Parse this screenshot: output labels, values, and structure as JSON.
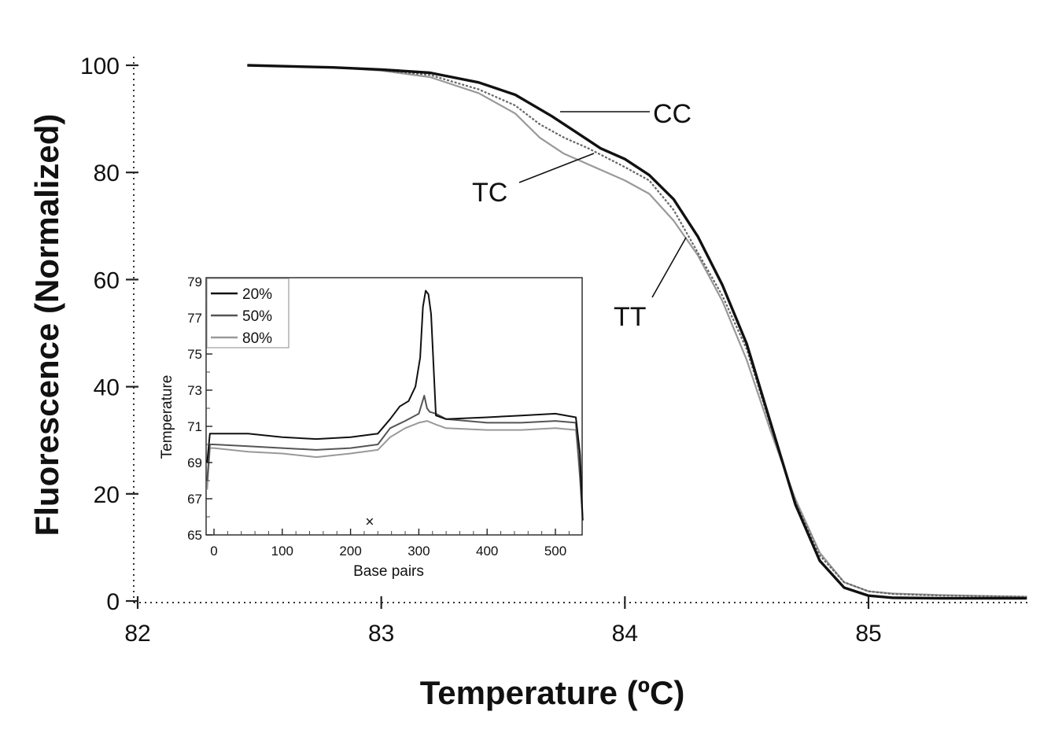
{
  "chart_data": [
    {
      "type": "line",
      "title": "",
      "xlabel": "Temperature (ºC)",
      "ylabel": "Fluorescence (Normalized)",
      "xlim": [
        82,
        85.65
      ],
      "ylim": [
        0,
        100
      ],
      "xticks": [
        "82",
        "83",
        "84",
        "85"
      ],
      "yticks": [
        "0",
        "20",
        "40",
        "60",
        "80",
        "100"
      ],
      "grid": false,
      "series": [
        {
          "name": "CC",
          "color": "#111111",
          "x": [
            82.45,
            82.8,
            83.0,
            83.2,
            83.4,
            83.55,
            83.7,
            83.8,
            83.9,
            84.0,
            84.1,
            84.2,
            84.3,
            84.4,
            84.5,
            84.6,
            84.7,
            84.8,
            84.9,
            85.0,
            85.1,
            85.3,
            85.65
          ],
          "y": [
            100,
            99.6,
            99.2,
            98.6,
            96.8,
            94.5,
            90.5,
            87.5,
            84.5,
            82.5,
            79.5,
            75.0,
            68.0,
            59.0,
            48.0,
            33.0,
            18.0,
            7.5,
            2.5,
            1.0,
            0.6,
            0.5,
            0.5
          ]
        },
        {
          "name": "TC",
          "color": "#666666",
          "x": [
            82.45,
            82.8,
            83.0,
            83.2,
            83.4,
            83.55,
            83.65,
            83.75,
            83.85,
            84.0,
            84.1,
            84.2,
            84.3,
            84.4,
            84.5,
            84.6,
            84.7,
            84.8,
            84.9,
            85.0,
            85.1,
            85.3,
            85.65
          ],
          "y": [
            100,
            99.6,
            99.1,
            98.2,
            95.5,
            92.5,
            89.0,
            86.5,
            84.5,
            81.0,
            78.5,
            73.0,
            65.0,
            57.0,
            47.0,
            32.5,
            18.5,
            8.5,
            3.5,
            1.8,
            1.3,
            1.0,
            0.8
          ]
        },
        {
          "name": "TT",
          "color": "#999999",
          "x": [
            82.45,
            82.8,
            83.0,
            83.2,
            83.4,
            83.55,
            83.65,
            83.75,
            83.85,
            84.0,
            84.1,
            84.2,
            84.3,
            84.4,
            84.5,
            84.6,
            84.7,
            84.8,
            84.9,
            85.0,
            85.1,
            85.3,
            85.65
          ],
          "y": [
            100,
            99.6,
            99.0,
            97.8,
            94.8,
            91.0,
            86.5,
            83.5,
            81.5,
            78.5,
            76.0,
            71.0,
            64.5,
            56.0,
            45.0,
            31.5,
            19.0,
            9.0,
            3.5,
            1.8,
            1.4,
            1.1,
            0.8
          ]
        }
      ],
      "annotations": [
        "CC",
        "TC",
        "TT"
      ]
    },
    {
      "type": "line",
      "title": "",
      "xlabel": "Base pairs",
      "ylabel": "Temperature",
      "xlim": [
        -10,
        540
      ],
      "ylim": [
        65,
        79
      ],
      "xticks": [
        "0",
        "100",
        "200",
        "300",
        "400",
        "500"
      ],
      "yticks": [
        "65",
        "67",
        "69",
        "71",
        "73",
        "75",
        "77",
        "79"
      ],
      "legend_position": "top-left",
      "marker_label": "×",
      "marker": {
        "x": 228,
        "y": 65.8
      },
      "series": [
        {
          "name": "20%",
          "color": "#111111",
          "x": [
            -10,
            -6,
            0,
            50,
            100,
            150,
            200,
            240,
            258,
            272,
            285,
            295,
            302,
            306,
            310,
            314,
            318,
            325,
            340,
            400,
            450,
            500,
            530,
            536,
            540
          ],
          "y": [
            69.0,
            70.6,
            70.6,
            70.6,
            70.4,
            70.3,
            70.4,
            70.6,
            71.4,
            72.1,
            72.4,
            73.2,
            74.8,
            77.6,
            78.5,
            78.3,
            77.2,
            71.6,
            71.4,
            71.5,
            71.6,
            71.7,
            71.5,
            69.5,
            65.8
          ]
        },
        {
          "name": "50%",
          "color": "#555555",
          "x": [
            -10,
            -6,
            0,
            50,
            100,
            150,
            200,
            240,
            258,
            280,
            300,
            308,
            312,
            316,
            325,
            340,
            400,
            450,
            500,
            530,
            536,
            540
          ],
          "y": [
            68.0,
            70.0,
            70.0,
            69.9,
            69.8,
            69.7,
            69.8,
            70.0,
            70.9,
            71.3,
            71.7,
            72.7,
            72.0,
            71.8,
            71.7,
            71.4,
            71.2,
            71.2,
            71.3,
            71.2,
            68.2,
            65.8
          ]
        },
        {
          "name": "80%",
          "color": "#999999",
          "x": [
            -10,
            -6,
            0,
            50,
            100,
            150,
            200,
            240,
            258,
            280,
            300,
            312,
            325,
            340,
            400,
            450,
            500,
            530,
            536,
            540
          ],
          "y": [
            67.5,
            69.8,
            69.8,
            69.6,
            69.5,
            69.3,
            69.5,
            69.7,
            70.4,
            70.9,
            71.2,
            71.3,
            71.1,
            70.9,
            70.8,
            70.8,
            70.9,
            70.8,
            68.5,
            65.8
          ]
        }
      ]
    }
  ]
}
